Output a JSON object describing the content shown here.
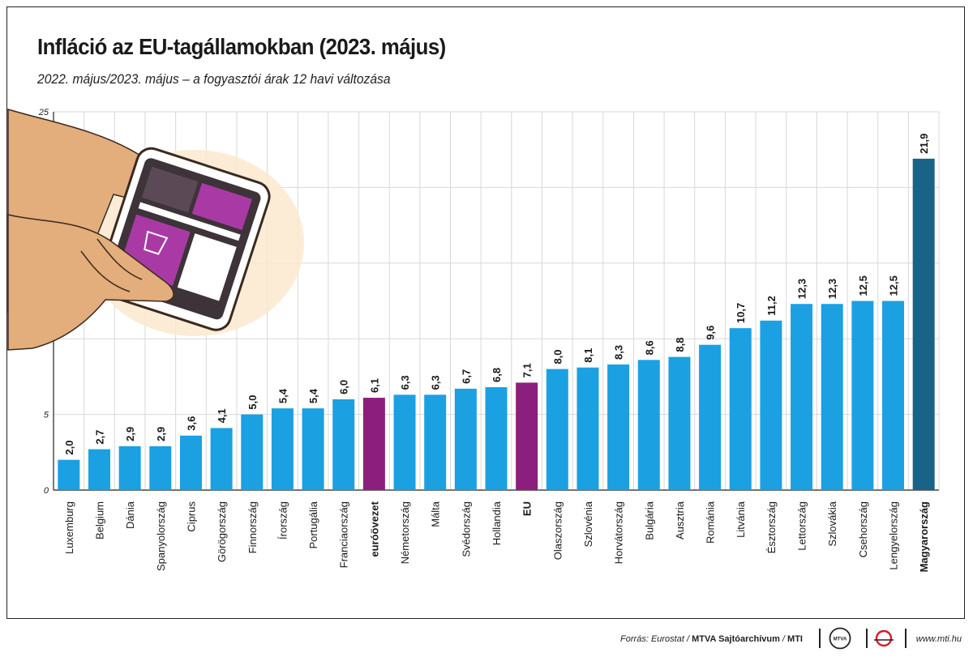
{
  "header": {
    "title": "Infláció az EU-tagállamokban (2023. május)",
    "subtitle": "2022. május/2023. május – a fogyasztói árak 12 havi változása"
  },
  "footer": {
    "source_prefix": "Forrás: Eurostat / ",
    "source_agency": "MTVA Sajtóarchívum",
    "source_sep": " / ",
    "source_mti": "MTI",
    "logo_mtva": "MTVA",
    "site": "www.mti.hu"
  },
  "colors": {
    "default_bar": "#1ba0e2",
    "eu_bar": "#8c1f7d",
    "hungary_bar": "#1a6388",
    "grid": "#d8d8d8"
  },
  "chart_data": {
    "type": "bar",
    "ylim": [
      0,
      25
    ],
    "yticks": [
      0,
      5,
      25
    ],
    "grid": true,
    "categories": [
      "Luxemburg",
      "Belgium",
      "Dánia",
      "Spanyolország",
      "Ciprus",
      "Görögország",
      "Finnország",
      "Írország",
      "Portugália",
      "Franciaország",
      "euróövezet",
      "Németország",
      "Málta",
      "Svédország",
      "Hollandia",
      "EU",
      "Olaszország",
      "Szlovénia",
      "Horvátország",
      "Bulgária",
      "Ausztria",
      "Románia",
      "Litvánia",
      "Észtország",
      "Lettország",
      "Szlovákia",
      "Csehország",
      "Lengyelország",
      "Magyarország"
    ],
    "values": [
      2.0,
      2.7,
      2.9,
      2.9,
      3.6,
      4.1,
      5.0,
      5.4,
      5.4,
      6.0,
      6.1,
      6.3,
      6.3,
      6.7,
      6.8,
      7.1,
      8.0,
      8.1,
      8.3,
      8.6,
      8.8,
      9.6,
      10.7,
      11.2,
      12.3,
      12.3,
      12.5,
      12.5,
      21.9
    ],
    "value_labels": [
      "2,0",
      "2,7",
      "2,9",
      "2,9",
      "3,6",
      "4,1",
      "5,0",
      "5,4",
      "5,4",
      "6,0",
      "6,1",
      "6,3",
      "6,3",
      "6,7",
      "6,8",
      "7,1",
      "8,0",
      "8,1",
      "8,3",
      "8,6",
      "8,8",
      "9,6",
      "10,7",
      "11,2",
      "12,3",
      "12,3",
      "12,5",
      "12,5",
      "21,9"
    ],
    "highlight": {
      "euróövezet": "eu",
      "EU": "eu",
      "Magyarország": "hungary"
    },
    "bold_labels": [
      "euróövezet",
      "EU",
      "Magyarország"
    ]
  }
}
